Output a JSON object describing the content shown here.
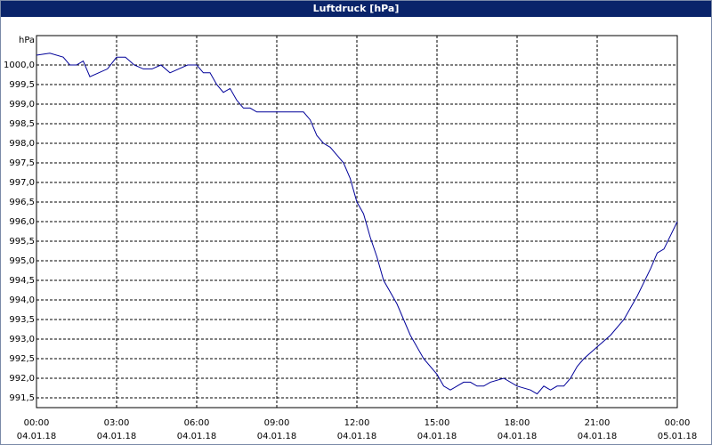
{
  "chart_data": {
    "type": "line",
    "title": "Luftdruck [hPa]",
    "y_label": "hPa",
    "x": [
      0,
      0.5,
      1,
      1.25,
      1.5,
      1.75,
      2,
      2.33,
      2.66,
      3,
      3.33,
      3.66,
      4,
      4.33,
      4.66,
      5,
      5.33,
      5.66,
      6,
      6.25,
      6.5,
      6.75,
      7,
      7.25,
      7.5,
      7.75,
      8,
      8.25,
      8.5,
      9,
      9.5,
      10,
      10.25,
      10.5,
      10.75,
      11,
      11.25,
      11.5,
      11.75,
      12,
      12.25,
      12.5,
      12.75,
      13,
      13.5,
      14,
      14.5,
      15,
      15.25,
      15.5,
      15.75,
      16,
      16.25,
      16.5,
      16.75,
      17,
      17.5,
      18,
      18.5,
      18.75,
      19,
      19.25,
      19.5,
      19.75,
      20,
      20.25,
      20.5,
      21,
      21.5,
      22,
      22.5,
      23,
      23.25,
      23.5,
      24
    ],
    "series": [
      {
        "name": "Luftdruck",
        "color": "#000099",
        "values": [
          1000.25,
          1000.3,
          1000.2,
          1000.0,
          1000.0,
          1000.1,
          999.7,
          999.8,
          999.9,
          1000.2,
          1000.2,
          1000.0,
          999.9,
          999.9,
          1000.0,
          999.8,
          999.9,
          1000.0,
          1000.0,
          999.8,
          999.8,
          999.5,
          999.3,
          999.4,
          999.1,
          998.9,
          998.9,
          998.8,
          998.8,
          998.8,
          998.8,
          998.8,
          998.6,
          998.2,
          998.0,
          997.9,
          997.7,
          997.5,
          997.1,
          996.5,
          996.2,
          995.6,
          995.1,
          994.5,
          993.9,
          993.1,
          992.5,
          992.1,
          991.8,
          991.7,
          991.8,
          991.9,
          991.9,
          991.8,
          991.8,
          991.9,
          992.0,
          991.8,
          991.7,
          991.6,
          991.8,
          991.7,
          991.8,
          991.8,
          992.0,
          992.3,
          992.5,
          992.8,
          993.1,
          993.5,
          994.1,
          994.8,
          995.2,
          995.3,
          996.0
        ]
      }
    ],
    "xlim": [
      0,
      24
    ],
    "xticks": [
      {
        "value": 0,
        "label": "00:00"
      },
      {
        "value": 3,
        "label": "03:00"
      },
      {
        "value": 6,
        "label": "06:00"
      },
      {
        "value": 9,
        "label": "09:00"
      },
      {
        "value": 12,
        "label": "12:00"
      },
      {
        "value": 15,
        "label": "15:00"
      },
      {
        "value": 18,
        "label": "18:00"
      },
      {
        "value": 21,
        "label": "21:00"
      },
      {
        "value": 24,
        "label": "00:00"
      }
    ],
    "xtick_dates": [
      "04.01.18",
      "04.01.18",
      "04.01.18",
      "04.01.18",
      "04.01.18",
      "04.01.18",
      "04.01.18",
      "04.01.18",
      "05.01.18"
    ],
    "ylim": [
      991.25,
      1000.75
    ],
    "yticks": [
      {
        "value": 991.5,
        "label": "991,5"
      },
      {
        "value": 992,
        "label": "992,0"
      },
      {
        "value": 992.5,
        "label": "992,5"
      },
      {
        "value": 993,
        "label": "993,0"
      },
      {
        "value": 993.5,
        "label": "993,5"
      },
      {
        "value": 994,
        "label": "994,0"
      },
      {
        "value": 994.5,
        "label": "994,5"
      },
      {
        "value": 995,
        "label": "995,0"
      },
      {
        "value": 995.5,
        "label": "995,5"
      },
      {
        "value": 996,
        "label": "996,0"
      },
      {
        "value": 996.5,
        "label": "996,5"
      },
      {
        "value": 997,
        "label": "997,0"
      },
      {
        "value": 997.5,
        "label": "997,5"
      },
      {
        "value": 998,
        "label": "998,0"
      },
      {
        "value": 998.5,
        "label": "998,5"
      },
      {
        "value": 999,
        "label": "999,0"
      },
      {
        "value": 999.5,
        "label": "999,5"
      },
      {
        "value": 1000,
        "label": "1000,0"
      }
    ],
    "grid": true
  }
}
